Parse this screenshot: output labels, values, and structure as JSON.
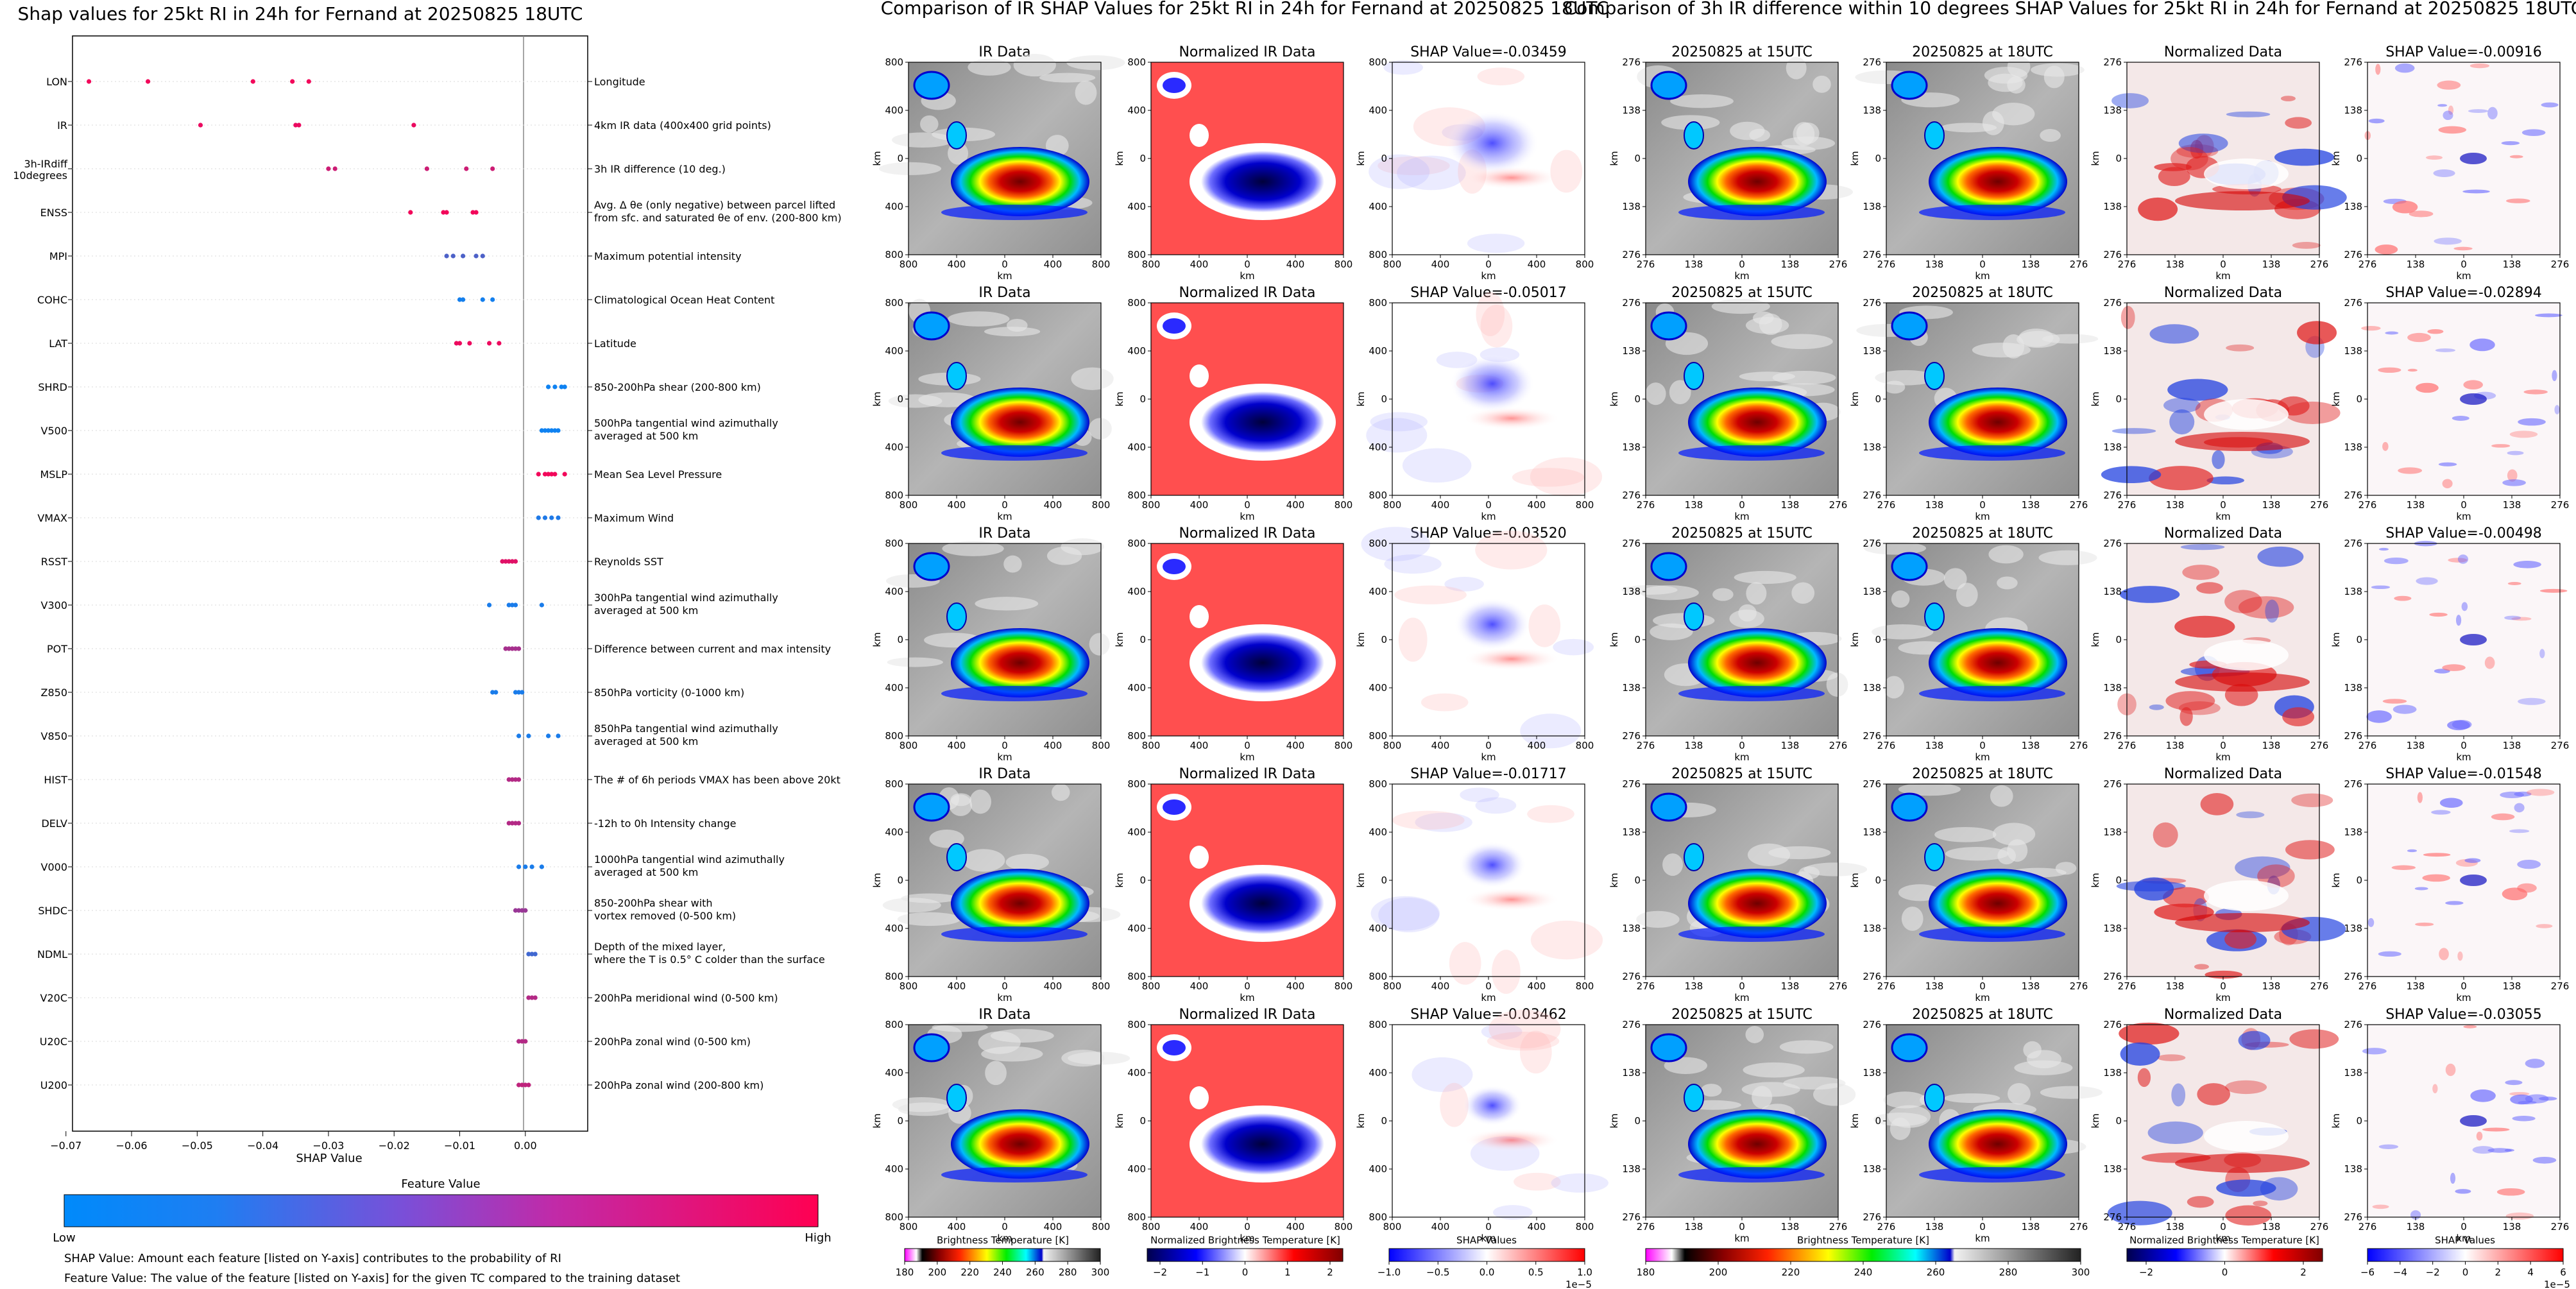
{
  "shap": {
    "title": "Shap values for 25kt RI in 24h for Fernand at 20250825 18UTC",
    "xlabel": "SHAP Value",
    "xticks": [
      "−0.07",
      "−0.06",
      "−0.05",
      "−0.04",
      "−0.03",
      "−0.02",
      "−0.01",
      "0.00"
    ],
    "colorbar_title": "Feature Value",
    "colorbar_low": "Low",
    "colorbar_high": "High",
    "note1": "SHAP Value: Amount each feature [listed on Y-axis] contributes to the probability of RI",
    "note2": "Feature Value: The value of the feature [listed on Y-axis] for the given TC compared to the training dataset",
    "features": [
      {
        "name": "LON",
        "desc": "Longitude"
      },
      {
        "name": "IR",
        "desc": "4km IR data (400x400 grid points)"
      },
      {
        "name": "3h-IRdiff",
        "name2": "10degrees",
        "desc": "3h IR difference (10 deg.)"
      },
      {
        "name": "ENSS",
        "desc": "Avg. Δ θe (only negative) between parcel lifted",
        "desc2": "from sfc. and saturated θe of env. (200-800 km)"
      },
      {
        "name": "MPI",
        "desc": "Maximum potential intensity"
      },
      {
        "name": "COHC",
        "desc": "Climatological Ocean Heat Content"
      },
      {
        "name": "LAT",
        "desc": "Latitude"
      },
      {
        "name": "SHRD",
        "desc": "850-200hPa shear (200-800 km)"
      },
      {
        "name": "V500",
        "desc": "500hPa tangential wind azimuthally",
        "desc2": "averaged at 500 km"
      },
      {
        "name": "MSLP",
        "desc": "Mean Sea Level Pressure"
      },
      {
        "name": "VMAX",
        "desc": "Maximum Wind"
      },
      {
        "name": "RSST",
        "desc": "Reynolds SST"
      },
      {
        "name": "V300",
        "desc": "300hPa tangential wind azimuthally",
        "desc2": "averaged at 500 km"
      },
      {
        "name": "POT",
        "desc": "Difference between current and max intensity"
      },
      {
        "name": "Z850",
        "desc": "850hPa vorticity (0-1000 km)"
      },
      {
        "name": "V850",
        "desc": "850hPa tangential wind azimuthally",
        "desc2": "averaged at 500 km"
      },
      {
        "name": "HIST",
        "desc": "The # of 6h periods VMAX has been above 20kt"
      },
      {
        "name": "DELV",
        "desc": "-12h to 0h Intensity change"
      },
      {
        "name": "V000",
        "desc": "1000hPa tangential wind azimuthally",
        "desc2": "averaged at 500 km"
      },
      {
        "name": "SHDC",
        "desc": "850-200hPa shear with",
        "desc2": "vortex removed (0-500 km)"
      },
      {
        "name": "NDML",
        "desc": "Depth of the mixed layer,",
        "desc2": "where the T is 0.5° C colder than the surface"
      },
      {
        "name": "V20C",
        "desc": "200hPa meridional wind (0-500 km)"
      },
      {
        "name": "U20C",
        "desc": "200hPa zonal wind (0-500 km)"
      },
      {
        "name": "U200",
        "desc": "200hPa zonal wind (200-800 km)"
      }
    ]
  },
  "ir_panel": {
    "title": "Comparison of IR SHAP Values for 25kt RI in 24h for Fernand at 20250825 18UTC",
    "col_titles": [
      "IR Data",
      "Normalized IR Data"
    ],
    "shap_titles": [
      "SHAP Value=-0.03459",
      "SHAP Value=-0.05017",
      "SHAP Value=-0.03520",
      "SHAP Value=-0.01717",
      "SHAP Value=-0.03462"
    ],
    "axis_unit": "km",
    "ticks": [
      "800",
      "400",
      "0",
      "400",
      "800"
    ],
    "cb1_label": "Brightness Temperature [K]",
    "cb1_ticks": [
      "180",
      "200",
      "220",
      "240",
      "260",
      "280",
      "300"
    ],
    "cb2_label": "Normalized Brightness Temperature [K]",
    "cb2_ticks": [
      "−2",
      "−1",
      "0",
      "1",
      "2"
    ],
    "cb3_label": "SHAP Values",
    "cb3_ticks": [
      "−1.0",
      "−0.5",
      "0.0",
      "0.5",
      "1.0"
    ],
    "cb3_exp": "1e−5"
  },
  "diff_panel": {
    "title": "Comparison of 3h IR difference within 10 degrees SHAP Values for 25kt RI in 24h for Fernand at 20250825 18UTC",
    "col_titles": [
      "20250825 at 15UTC",
      "20250825 at 18UTC",
      "Normalized Data"
    ],
    "shap_titles": [
      "SHAP Value=-0.00916",
      "SHAP Value=-0.02894",
      "SHAP Value=-0.00498",
      "SHAP Value=-0.01548",
      "SHAP Value=-0.03055"
    ],
    "axis_unit": "km",
    "ticks": [
      "276",
      "138",
      "0",
      "138",
      "276"
    ],
    "cb1_label": "Brightness Temperature [K]",
    "cb1_ticks": [
      "180",
      "200",
      "220",
      "240",
      "260",
      "280",
      "300"
    ],
    "cb2_label": "Normalized Brightness Temperature [K]",
    "cb2_ticks": [
      "−2",
      "0",
      "2"
    ],
    "cb3_label": "SHAP Values",
    "cb3_ticks": [
      "−6",
      "−4",
      "−2",
      "0",
      "2",
      "4",
      "6"
    ],
    "cb3_exp": "1e−5"
  },
  "chart_data": {
    "type": "scatter",
    "title": "Shap values for 25kt RI in 24h for Fernand at 20250825 18UTC",
    "xlabel": "SHAP Value",
    "ylabel": "",
    "xlim": [
      -0.069,
      0.0095
    ],
    "categories": [
      "LON",
      "IR",
      "3h-IRdiff 10degrees",
      "ENSS",
      "MPI",
      "COHC",
      "LAT",
      "SHRD",
      "V500",
      "MSLP",
      "VMAX",
      "RSST",
      "V300",
      "POT",
      "Z850",
      "V850",
      "HIST",
      "DELV",
      "V000",
      "SHDC",
      "NDML",
      "V20C",
      "U20C",
      "U200"
    ],
    "colormap": {
      "low": "#008afb",
      "high": "#ff0052",
      "label": "Feature Value"
    },
    "series": [
      {
        "values": [
          -0.0665,
          -0.0575,
          -0.0415,
          -0.0355,
          -0.033
        ],
        "feature_value": 0.95
      },
      {
        "values": [
          -0.0495,
          -0.035,
          -0.0345,
          -0.017
        ],
        "feature_value": 0.92
      },
      {
        "values": [
          -0.03,
          -0.029,
          -0.015,
          -0.009,
          -0.005
        ],
        "feature_value": 0.8
      },
      {
        "values": [
          -0.0175,
          -0.0125,
          -0.012,
          -0.008,
          -0.0075
        ],
        "feature_value": 0.95
      },
      {
        "values": [
          -0.012,
          -0.011,
          -0.0095,
          -0.0075,
          -0.0065
        ],
        "feature_value": 0.3
      },
      {
        "values": [
          -0.01,
          -0.0095,
          -0.0065,
          -0.005
        ],
        "feature_value": 0.08
      },
      {
        "values": [
          -0.0105,
          -0.01,
          -0.0085,
          -0.0055,
          -0.004
        ],
        "feature_value": 0.93
      },
      {
        "values": [
          0.0035,
          0.0045,
          0.0055,
          0.006
        ],
        "feature_value": 0.06
      },
      {
        "values": [
          0.0025,
          0.003,
          0.0035,
          0.004,
          0.0045,
          0.005
        ],
        "feature_value": 0.06
      },
      {
        "values": [
          0.002,
          0.003,
          0.0035,
          0.004,
          0.0045,
          0.006
        ],
        "feature_value": 0.95
      },
      {
        "values": [
          0.002,
          0.003,
          0.004,
          0.005
        ],
        "feature_value": 0.12
      },
      {
        "values": [
          -0.0035,
          -0.003,
          -0.0025,
          -0.002,
          -0.0015
        ],
        "feature_value": 0.88
      },
      {
        "values": [
          -0.0055,
          -0.0025,
          -0.002,
          -0.0015,
          0.0025
        ],
        "feature_value": 0.1
      },
      {
        "values": [
          -0.003,
          -0.0025,
          -0.002,
          -0.0015,
          -0.001
        ],
        "feature_value": 0.65
      },
      {
        "values": [
          -0.005,
          -0.0045,
          -0.0015,
          -0.001,
          -0.0005
        ],
        "feature_value": 0.1
      },
      {
        "values": [
          -0.001,
          0.0005,
          0.0035,
          0.005
        ],
        "feature_value": 0.1
      },
      {
        "values": [
          -0.0025,
          -0.002,
          -0.0015,
          -0.001
        ],
        "feature_value": 0.7
      },
      {
        "values": [
          -0.0025,
          -0.002,
          -0.0015,
          -0.001
        ],
        "feature_value": 0.7
      },
      {
        "values": [
          -0.001,
          0.0,
          0.001,
          0.0025
        ],
        "feature_value": 0.1
      },
      {
        "values": [
          -0.0015,
          -0.001,
          -0.0005,
          0.0
        ],
        "feature_value": 0.6
      },
      {
        "values": [
          0.0005,
          0.001,
          0.0015
        ],
        "feature_value": 0.25
      },
      {
        "values": [
          0.0005,
          0.001,
          0.0015
        ],
        "feature_value": 0.7
      },
      {
        "values": [
          -0.001,
          -0.0005,
          0.0
        ],
        "feature_value": 0.7
      },
      {
        "values": [
          -0.001,
          -0.0005,
          0.0,
          0.0005
        ],
        "feature_value": 0.75
      }
    ]
  }
}
